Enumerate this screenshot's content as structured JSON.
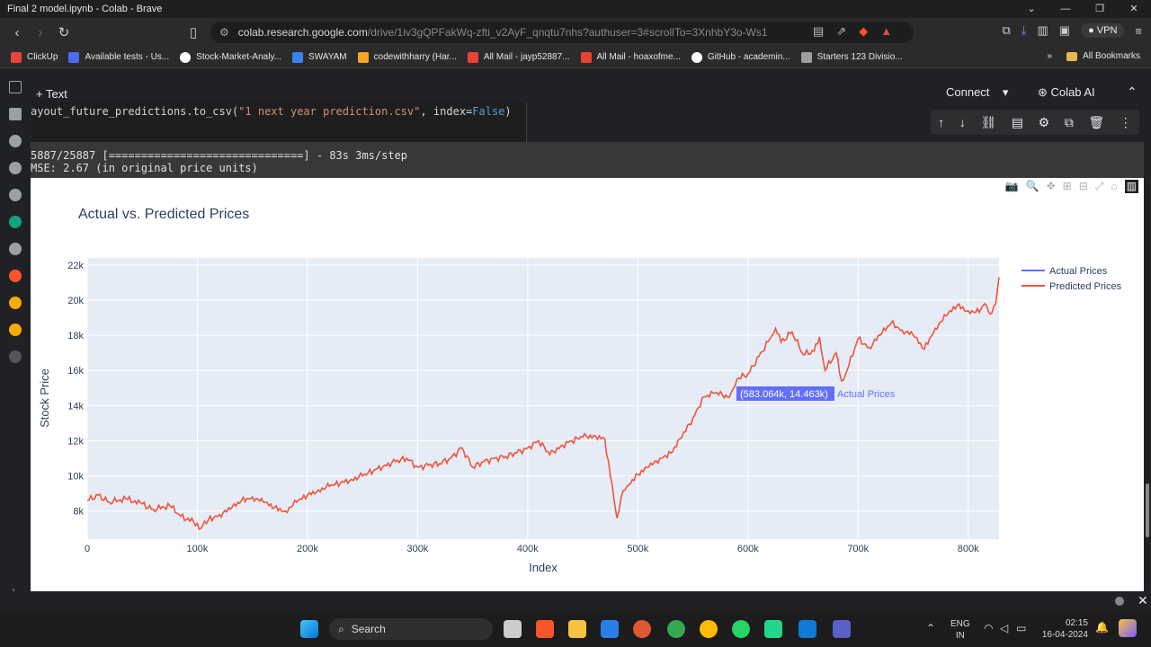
{
  "window": {
    "title": "Final 2 model.ipynb - Colab - Brave"
  },
  "browser": {
    "url_host": "colab.research.google.com",
    "url_path": "/drive/1iv3gQPFakWq-zfti_v2AyF_qnqtu7nhs?authuser=3#scrollTo=3XnhbY3o-Ws1",
    "vpn_label": "VPN"
  },
  "bookmarks": [
    {
      "label": "ClickUp",
      "color": "#e8443a"
    },
    {
      "label": "Available tests - Us...",
      "color": "#4a6cf7"
    },
    {
      "label": "Stock-Market-Analy...",
      "color": "#ffffff"
    },
    {
      "label": "SWAYAM",
      "color": "#3b82f6"
    },
    {
      "label": "codewithharry (Har...",
      "color": "#f5a623"
    },
    {
      "label": "All Mail - jayp52887...",
      "color": "#ea4335"
    },
    {
      "label": "All Mail - hoaxofme...",
      "color": "#ea4335"
    },
    {
      "label": "GitHub - academin...",
      "color": "#ffffff"
    },
    {
      "label": "Starters 123 Divisio...",
      "color": "#9e9e9e"
    }
  ],
  "bookmarks_all": "All Bookmarks",
  "colab": {
    "add_text": "+ Text",
    "connect": "Connect",
    "colab_ai": "Colab AI",
    "code_prefix": "ayout_future_predictions.to_csv(",
    "code_string": "\"1 next year prediction.csv\"",
    "code_mid": ", index=",
    "code_kw": "False",
    "code_suffix": ")",
    "output_line1": "5887/25887 [==============================] - 83s 3ms/step",
    "output_line2": "MSE: 2.67 (in original price units)"
  },
  "chart_data": {
    "type": "line",
    "title": "Actual vs. Predicted Prices",
    "xlabel": "Index",
    "ylabel": "Stock Price",
    "xlim": [
      0,
      828000
    ],
    "ylim": [
      6400,
      22400
    ],
    "x_ticks": [
      0,
      100000,
      200000,
      300000,
      400000,
      500000,
      600000,
      700000,
      800000
    ],
    "x_tick_labels": [
      "0",
      "100k",
      "200k",
      "300k",
      "400k",
      "500k",
      "600k",
      "700k",
      "800k"
    ],
    "y_ticks": [
      8000,
      10000,
      12000,
      14000,
      16000,
      18000,
      20000,
      22000
    ],
    "y_tick_labels": [
      "8k",
      "10k",
      "12k",
      "14k",
      "16k",
      "18k",
      "20k",
      "22k"
    ],
    "grid": true,
    "legend_position": "top-right",
    "series": [
      {
        "name": "Actual Prices",
        "color": "#636efa",
        "values": []
      },
      {
        "name": "Predicted Prices",
        "color": "#ef553b",
        "x": [
          0,
          10000,
          20000,
          35000,
          50000,
          60000,
          75000,
          85000,
          100000,
          103000,
          110000,
          120000,
          130000,
          140000,
          150000,
          160000,
          170000,
          180000,
          190000,
          200000,
          210000,
          220000,
          230000,
          240000,
          250000,
          260000,
          270000,
          280000,
          290000,
          300000,
          310000,
          320000,
          330000,
          340000,
          350000,
          360000,
          370000,
          380000,
          390000,
          400000,
          410000,
          420000,
          430000,
          440000,
          450000,
          460000,
          470000,
          475000,
          480000,
          481000,
          485000,
          490000,
          500000,
          510000,
          520000,
          530000,
          540000,
          550000,
          560000,
          570000,
          580000,
          583000,
          590000,
          600000,
          610000,
          620000,
          625000,
          630000,
          640000,
          650000,
          660000,
          665000,
          670000,
          680000,
          685000,
          690000,
          700000,
          710000,
          720000,
          730000,
          740000,
          750000,
          760000,
          770000,
          780000,
          790000,
          800000,
          810000,
          815000,
          820000,
          825000,
          828000
        ],
        "values": [
          8600,
          8900,
          8500,
          8700,
          8400,
          8100,
          8300,
          7700,
          7300,
          7000,
          7500,
          7800,
          8100,
          8600,
          8800,
          8500,
          8200,
          8000,
          8500,
          8900,
          9200,
          9400,
          9600,
          9800,
          10000,
          10300,
          10600,
          10800,
          11000,
          10500,
          10600,
          10700,
          11000,
          11600,
          10500,
          10800,
          11000,
          11100,
          11300,
          11600,
          12000,
          11200,
          11700,
          12000,
          12200,
          12300,
          12100,
          10000,
          8000,
          7600,
          8800,
          9400,
          10100,
          10500,
          11000,
          11300,
          12200,
          13300,
          14500,
          14700,
          14600,
          14463,
          15500,
          15800,
          16800,
          17800,
          18400,
          17600,
          18200,
          16900,
          17100,
          17900,
          16000,
          17000,
          15400,
          16000,
          17800,
          17300,
          18000,
          18700,
          18300,
          18000,
          17200,
          18400,
          19100,
          19700,
          19400,
          19300,
          19800,
          19200,
          19800,
          21300
        ]
      }
    ],
    "hover_label": "(583.064k, 14.463k)",
    "hover_series": "Actual Prices"
  },
  "taskbar": {
    "search_placeholder": "Search",
    "lang_line1": "ENG",
    "lang_line2": "IN",
    "time": "02:15",
    "date": "16-04-2024"
  }
}
